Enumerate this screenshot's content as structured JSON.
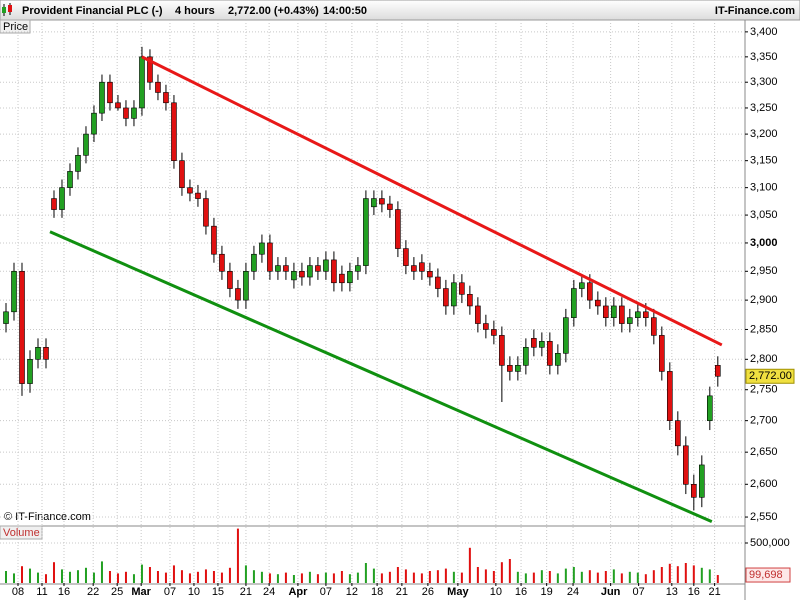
{
  "header": {
    "title": "Provident Financial PLC (-)",
    "period": "4 hours",
    "quote": "2,772.00 (+0.43%)",
    "time": "14:00:50",
    "brand": "IT-Finance.com"
  },
  "chart_data": {
    "type": "candlestick",
    "price_label": "Price",
    "volume_label": "Volume",
    "copyright": "© IT-Finance.com",
    "log_scale": true,
    "grid": true,
    "up_color": "#22a022",
    "down_color": "#e01010",
    "wick_color": "#000000",
    "open": [
      2860,
      2880,
      2950,
      2760,
      2800,
      2820,
      3080,
      3060,
      3100,
      3130,
      3160,
      3200,
      3240,
      3300,
      3260,
      3250,
      3230,
      3250,
      3350,
      3300,
      3280,
      3260,
      3150,
      3100,
      3090,
      3080,
      3030,
      2980,
      2950,
      2920,
      2900,
      2950,
      2980,
      3000,
      2950,
      2960,
      2935,
      2950,
      2940,
      2960,
      2950,
      2970,
      2945,
      2930,
      2950,
      2960,
      3065,
      3080,
      3070,
      3060,
      2990,
      2960,
      2965,
      2950,
      2940,
      2920,
      2890,
      2930,
      2910,
      2890,
      2860,
      2850,
      2840,
      2790,
      2780,
      2790,
      2835,
      2820,
      2830,
      2790,
      2810,
      2870,
      2920,
      2930,
      2900,
      2890,
      2870,
      2890,
      2860,
      2870,
      2880,
      2870,
      2840,
      2780,
      2700,
      2660,
      2600,
      2580,
      2700,
      2790
    ],
    "high": [
      2895,
      2965,
      2965,
      2815,
      2835,
      2835,
      3095,
      3115,
      3145,
      3175,
      3215,
      3255,
      3315,
      3315,
      3275,
      3265,
      3265,
      3370,
      3365,
      3315,
      3295,
      3275,
      3165,
      3115,
      3105,
      3095,
      3045,
      2995,
      2965,
      2935,
      2965,
      2995,
      3015,
      3015,
      2975,
      2975,
      2965,
      2965,
      2975,
      2975,
      2985,
      2985,
      2960,
      2965,
      2975,
      3095,
      3095,
      3095,
      3085,
      3075,
      3005,
      2975,
      2980,
      2965,
      2955,
      2935,
      2945,
      2945,
      2925,
      2905,
      2875,
      2865,
      2855,
      2805,
      2805,
      2835,
      2850,
      2845,
      2845,
      2825,
      2885,
      2935,
      2945,
      2945,
      2915,
      2905,
      2905,
      2905,
      2885,
      2895,
      2895,
      2885,
      2855,
      2795,
      2715,
      2675,
      2615,
      2645,
      2755,
      2805
    ],
    "low": [
      2845,
      2865,
      2740,
      2745,
      2785,
      2785,
      3045,
      3045,
      3085,
      3115,
      3145,
      3185,
      3225,
      3245,
      3245,
      3215,
      3215,
      3235,
      3285,
      3265,
      3245,
      3135,
      3085,
      3075,
      3065,
      3015,
      2965,
      2935,
      2905,
      2885,
      2885,
      2935,
      2965,
      2935,
      2935,
      2935,
      2920,
      2925,
      2925,
      2935,
      2935,
      2915,
      2915,
      2915,
      2935,
      2945,
      3050,
      3055,
      3045,
      2975,
      2945,
      2935,
      2935,
      2925,
      2905,
      2875,
      2875,
      2895,
      2875,
      2845,
      2835,
      2825,
      2730,
      2765,
      2765,
      2775,
      2805,
      2805,
      2775,
      2775,
      2795,
      2855,
      2905,
      2885,
      2875,
      2855,
      2855,
      2845,
      2845,
      2855,
      2855,
      2825,
      2765,
      2685,
      2645,
      2585,
      2560,
      2565,
      2685,
      2755
    ],
    "close": [
      2880,
      2950,
      2760,
      2800,
      2820,
      2800,
      3060,
      3100,
      3130,
      3160,
      3200,
      3240,
      3300,
      3260,
      3250,
      3230,
      3250,
      3350,
      3300,
      3280,
      3260,
      3150,
      3100,
      3090,
      3080,
      3030,
      2980,
      2950,
      2920,
      2900,
      2950,
      2980,
      3000,
      2950,
      2960,
      2950,
      2950,
      2940,
      2960,
      2950,
      2970,
      2930,
      2930,
      2950,
      2960,
      3080,
      3080,
      3070,
      3060,
      2990,
      2960,
      2950,
      2950,
      2940,
      2920,
      2890,
      2930,
      2910,
      2890,
      2860,
      2850,
      2840,
      2790,
      2780,
      2790,
      2820,
      2820,
      2830,
      2790,
      2810,
      2870,
      2920,
      2930,
      2900,
      2890,
      2870,
      2890,
      2860,
      2870,
      2880,
      2870,
      2840,
      2780,
      2700,
      2660,
      2600,
      2580,
      2630,
      2740,
      2772
    ],
    "last_close_label": "2,772.00",
    "volume": [
      150000,
      120000,
      210000,
      180000,
      130000,
      110000,
      260000,
      170000,
      140000,
      160000,
      190000,
      130000,
      270000,
      150000,
      120000,
      140000,
      110000,
      230000,
      200000,
      150000,
      130000,
      220000,
      160000,
      120000,
      140000,
      170000,
      150000,
      130000,
      190000,
      680000,
      220000,
      160000,
      140000,
      120000,
      110000,
      130000,
      100000,
      120000,
      140000,
      110000,
      130000,
      120000,
      150000,
      110000,
      130000,
      250000,
      180000,
      120000,
      140000,
      200000,
      170000,
      130000,
      120000,
      150000,
      160000,
      180000,
      140000,
      130000,
      440000,
      200000,
      170000,
      150000,
      260000,
      300000,
      140000,
      120000,
      130000,
      160000,
      150000,
      120000,
      180000,
      200000,
      140000,
      160000,
      130000,
      150000,
      170000,
      120000,
      140000,
      130000,
      110000,
      160000,
      200000,
      240000,
      210000,
      250000,
      220000,
      190000,
      170000,
      99698
    ],
    "last_volume_label": "99,698",
    "xlim": [
      -0.75,
      92.4
    ],
    "xticks": [
      {
        "value": 1.5,
        "label": "08"
      },
      {
        "value": 4.5,
        "label": "11"
      },
      {
        "value": 7.25,
        "label": "16"
      },
      {
        "value": 10.9,
        "label": "22"
      },
      {
        "value": 13.9,
        "label": "25"
      },
      {
        "value": 16.9,
        "label": "Mar"
      },
      {
        "value": 20.5,
        "label": "07"
      },
      {
        "value": 23.5,
        "label": "10"
      },
      {
        "value": 26.5,
        "label": "15"
      },
      {
        "value": 30,
        "label": "21"
      },
      {
        "value": 32.9,
        "label": "24"
      },
      {
        "value": 36.5,
        "label": "Apr"
      },
      {
        "value": 40,
        "label": "07"
      },
      {
        "value": 43.25,
        "label": "12"
      },
      {
        "value": 46.4,
        "label": "18"
      },
      {
        "value": 49.5,
        "label": "21"
      },
      {
        "value": 52.75,
        "label": "26"
      },
      {
        "value": 56.5,
        "label": "May"
      },
      {
        "value": 61.25,
        "label": "10"
      },
      {
        "value": 64.4,
        "label": "16"
      },
      {
        "value": 67.6,
        "label": "19"
      },
      {
        "value": 70.9,
        "label": "24"
      },
      {
        "value": 75.6,
        "label": "Jun"
      },
      {
        "value": 79.1,
        "label": "07"
      },
      {
        "value": 83.25,
        "label": "13"
      },
      {
        "value": 86,
        "label": "16"
      },
      {
        "value": 88.6,
        "label": "21"
      }
    ],
    "ylim": [
      2538,
      3424
    ],
    "yticks": [
      {
        "value": 2550,
        "label": "2,550"
      },
      {
        "value": 2600,
        "label": "2,600"
      },
      {
        "value": 2650,
        "label": "2,650"
      },
      {
        "value": 2700,
        "label": "2,700"
      },
      {
        "value": 2750,
        "label": "2,750"
      },
      {
        "value": 2800,
        "label": "2,800"
      },
      {
        "value": 2850,
        "label": "2,850"
      },
      {
        "value": 2900,
        "label": "2,900"
      },
      {
        "value": 2950,
        "label": "2,950"
      },
      {
        "value": 3000,
        "label": "3,000"
      },
      {
        "value": 3050,
        "label": "3,050"
      },
      {
        "value": 3100,
        "label": "3,100"
      },
      {
        "value": 3150,
        "label": "3,150"
      },
      {
        "value": 3200,
        "label": "3,200"
      },
      {
        "value": 3250,
        "label": "3,250"
      },
      {
        "value": 3300,
        "label": "3,300"
      },
      {
        "value": 3350,
        "label": "3,350"
      },
      {
        "value": 3400,
        "label": "3,400"
      }
    ],
    "bold_ytick": 3000,
    "y2lim": [
      0,
      700000
    ],
    "y2ticks": [
      {
        "value": 500000,
        "label": "500,000"
      }
    ],
    "trendlines": [
      {
        "color": "#e81818",
        "x": [
          17,
          89.5
        ],
        "y": [
          3350,
          2824
        ]
      },
      {
        "color": "#109010",
        "x": [
          5.5,
          88.25
        ],
        "y": [
          3020,
          2543
        ]
      }
    ]
  }
}
